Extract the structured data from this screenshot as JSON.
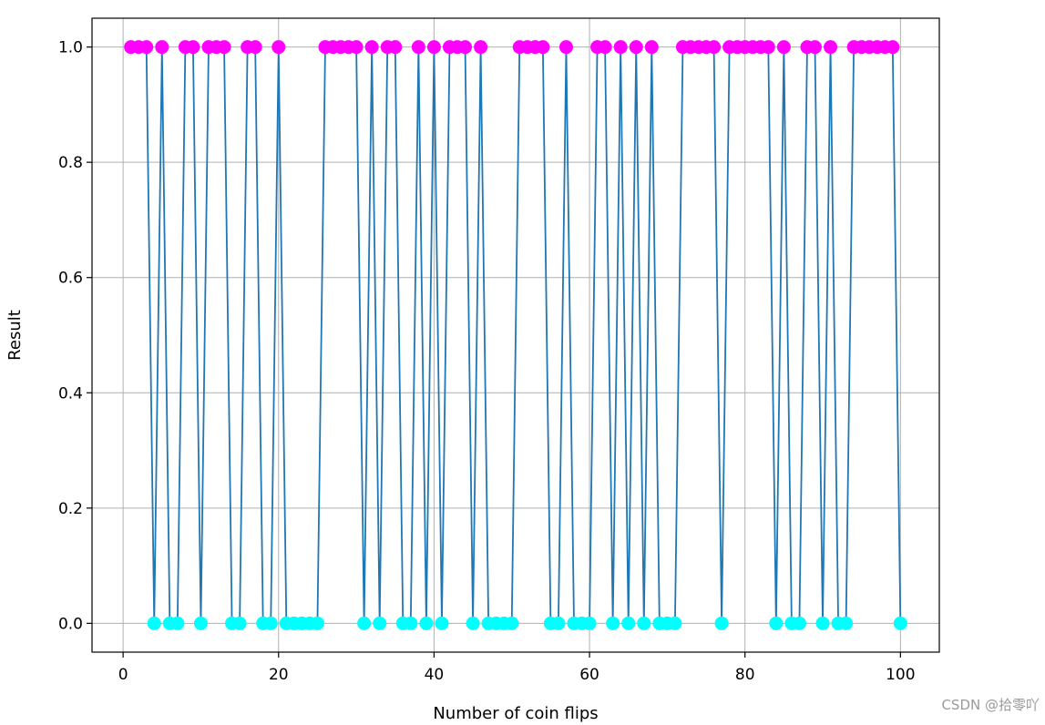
{
  "chart_data": {
    "type": "line",
    "title": "",
    "xlabel": "Number of coin flips",
    "ylabel": "Result",
    "xlim": [
      -4,
      105
    ],
    "ylim": [
      -0.05,
      1.05
    ],
    "xticks": [
      0,
      20,
      40,
      60,
      80,
      100
    ],
    "yticks": [
      0.0,
      0.2,
      0.4,
      0.6,
      0.8,
      1.0
    ],
    "xtick_labels": [
      "0",
      "20",
      "40",
      "60",
      "80",
      "100"
    ],
    "ytick_labels": [
      "0.0",
      "0.2",
      "0.4",
      "0.6",
      "0.8",
      "1.0"
    ],
    "grid": true,
    "x": [
      1,
      2,
      3,
      4,
      5,
      6,
      7,
      8,
      9,
      10,
      11,
      12,
      13,
      14,
      15,
      16,
      17,
      18,
      19,
      20,
      21,
      22,
      23,
      24,
      25,
      26,
      27,
      28,
      29,
      30,
      31,
      32,
      33,
      34,
      35,
      36,
      37,
      38,
      39,
      40,
      41,
      42,
      43,
      44,
      45,
      46,
      47,
      48,
      49,
      50,
      51,
      52,
      53,
      54,
      55,
      56,
      57,
      58,
      59,
      60,
      61,
      62,
      63,
      64,
      65,
      66,
      67,
      68,
      69,
      70,
      71,
      72,
      73,
      74,
      75,
      76,
      77,
      78,
      79,
      80,
      81,
      82,
      83,
      84,
      85,
      86,
      87,
      88,
      89,
      90,
      91,
      92,
      93,
      94,
      95,
      96,
      97,
      98,
      99,
      100
    ],
    "series": [
      {
        "values": [
          1,
          1,
          1,
          0,
          1,
          0,
          0,
          1,
          1,
          0,
          1,
          1,
          1,
          0,
          0,
          1,
          1,
          0,
          0,
          1,
          0,
          0,
          0,
          0,
          0,
          1,
          1,
          1,
          1,
          1,
          0,
          1,
          0,
          1,
          1,
          0,
          0,
          1,
          0,
          1,
          0,
          1,
          1,
          1,
          0,
          1,
          0,
          0,
          0,
          0,
          1,
          1,
          1,
          1,
          0,
          0,
          1,
          0,
          0,
          0,
          1,
          1,
          0,
          1,
          0,
          1,
          0,
          1,
          0,
          0,
          0,
          1,
          1,
          1,
          1,
          1,
          0,
          1,
          1,
          1,
          1,
          1,
          1,
          0,
          1,
          0,
          0,
          1,
          1,
          0,
          1,
          0,
          0,
          1,
          1,
          1,
          1,
          1,
          1,
          0
        ],
        "line_color": "#1f77b4",
        "marker_color_heads": "#ff00ff",
        "marker_color_tails": "#00ffff"
      }
    ]
  },
  "watermark": "CSDN @拾零吖"
}
